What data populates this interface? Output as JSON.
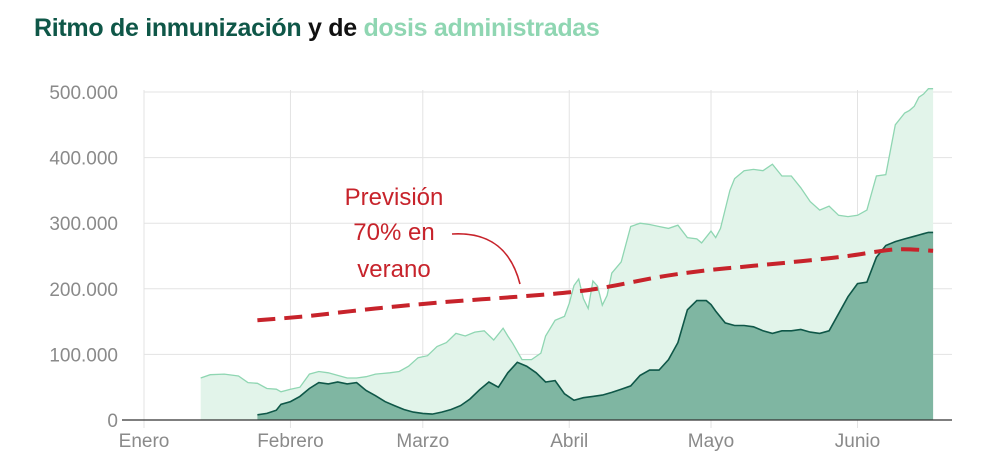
{
  "title": {
    "part1": "Ritmo de inmunización",
    "part2": " y de ",
    "part3": "dosis administradas"
  },
  "colors": {
    "immunization": "#0f5748",
    "immunization_fill": "#7fb6a2",
    "doses_line": "#8fd6b2",
    "doses_fill": "#e2f4ea",
    "forecast": "#c7232b",
    "grid": "#e3e3e3"
  },
  "annotation": {
    "lines": [
      "Previsión",
      "70% en",
      "verano"
    ]
  },
  "chart_data": {
    "type": "area",
    "x_unit": "day of year 2021 (1 = 1 Jan)",
    "xlim": [
      1,
      172
    ],
    "ylim": [
      0,
      500000
    ],
    "yticks": [
      0,
      100000,
      200000,
      300000,
      400000,
      500000
    ],
    "ytick_labels": [
      "0",
      "100.000",
      "200.000",
      "300.000",
      "400.000",
      "500.000"
    ],
    "xticks": [
      1,
      32,
      60,
      91,
      121,
      152
    ],
    "xtick_labels": [
      "Enero",
      "Febrero",
      "Marzo",
      "Abril",
      "Mayo",
      "Junio"
    ],
    "grid": true,
    "series": [
      {
        "name": "dosis administradas",
        "x": [
          13,
          15,
          18,
          21,
          23,
          25,
          27,
          29,
          30,
          32,
          34,
          36,
          38,
          40,
          42,
          44,
          46,
          48,
          50,
          53,
          55,
          57,
          59,
          61,
          63,
          65,
          67,
          69,
          71,
          73,
          75,
          77,
          78,
          79,
          81,
          83,
          85,
          86,
          88,
          90,
          91,
          92,
          93,
          94,
          95,
          96,
          97,
          98,
          99,
          100,
          102,
          104,
          106,
          108,
          110,
          112,
          114,
          116,
          118,
          119,
          121,
          122,
          123,
          125,
          126,
          128,
          130,
          132,
          134,
          136,
          138,
          140,
          142,
          144,
          146,
          148,
          150,
          152,
          154,
          156,
          158,
          160,
          162,
          163,
          164,
          165,
          166,
          167,
          168
        ],
        "y": [
          64000,
          69000,
          70000,
          67000,
          57000,
          56000,
          48000,
          47000,
          43000,
          47000,
          50000,
          70000,
          74000,
          72000,
          68000,
          64000,
          64000,
          66000,
          70000,
          72000,
          74000,
          82000,
          95000,
          98000,
          112000,
          118000,
          132000,
          128000,
          134000,
          136000,
          122000,
          140000,
          128000,
          117000,
          92000,
          92000,
          102000,
          128000,
          152000,
          158000,
          178000,
          205000,
          215000,
          185000,
          170000,
          212000,
          204000,
          175000,
          190000,
          224000,
          241000,
          295000,
          300000,
          298000,
          295000,
          292000,
          297000,
          278000,
          276000,
          270000,
          288000,
          278000,
          292000,
          350000,
          368000,
          380000,
          382000,
          380000,
          390000,
          372000,
          372000,
          354000,
          333000,
          320000,
          326000,
          312000,
          310000,
          312000,
          320000,
          372000,
          374000,
          450000,
          468000,
          472000,
          478000,
          492000,
          497000,
          505000,
          505000
        ]
      },
      {
        "name": "inmunización",
        "x": [
          25,
          27,
          29,
          30,
          32,
          34,
          36,
          38,
          40,
          42,
          44,
          46,
          48,
          50,
          52,
          54,
          56,
          58,
          60,
          62,
          64,
          66,
          68,
          70,
          72,
          74,
          76,
          78,
          80,
          82,
          84,
          86,
          88,
          90,
          92,
          94,
          96,
          98,
          100,
          102,
          104,
          106,
          108,
          110,
          112,
          114,
          116,
          118,
          120,
          121,
          122,
          124,
          126,
          128,
          130,
          132,
          134,
          136,
          138,
          140,
          142,
          144,
          146,
          148,
          150,
          152,
          154,
          156,
          158,
          160,
          162,
          164,
          165,
          166,
          167,
          168
        ],
        "y": [
          8000,
          10000,
          15000,
          24000,
          28000,
          36000,
          48000,
          57000,
          55000,
          58000,
          55000,
          57000,
          45000,
          37000,
          28000,
          22000,
          16000,
          12000,
          10000,
          9000,
          12000,
          16000,
          22000,
          32000,
          46000,
          58000,
          50000,
          72000,
          88000,
          82000,
          72000,
          58000,
          60000,
          40000,
          30000,
          34000,
          36000,
          38000,
          42000,
          47000,
          52000,
          68000,
          76000,
          76000,
          92000,
          118000,
          168000,
          182000,
          182000,
          176000,
          166000,
          148000,
          144000,
          144000,
          142000,
          136000,
          132000,
          136000,
          136000,
          138000,
          134000,
          132000,
          136000,
          162000,
          188000,
          208000,
          210000,
          248000,
          266000,
          272000,
          276000,
          280000,
          282000,
          284000,
          286000,
          286000
        ]
      },
      {
        "name": "Previsión 70% en verano",
        "x": [
          25,
          35,
          50,
          65,
          80,
          95,
          110,
          120,
          130,
          140,
          150,
          160,
          168
        ],
        "y": [
          152000,
          158000,
          170000,
          180000,
          188000,
          198000,
          218000,
          228000,
          235000,
          242000,
          250000,
          260000,
          258000
        ]
      }
    ]
  }
}
